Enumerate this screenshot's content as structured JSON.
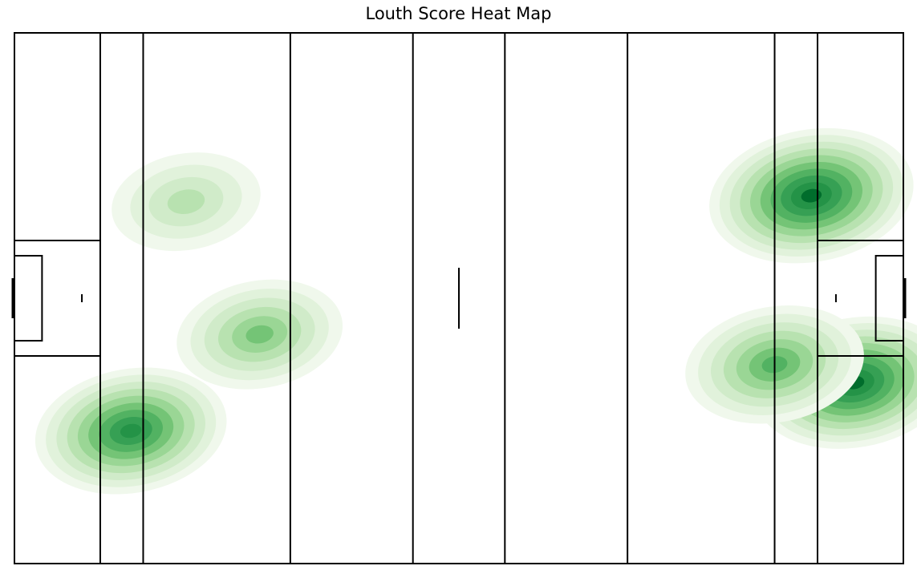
{
  "chart_data": {
    "type": "heatmap",
    "title": "Louth Score Heat Map",
    "xlabel": "",
    "ylabel": "",
    "xlim": [
      0,
      145
    ],
    "ylim": [
      0,
      88
    ],
    "colormap": "Greens",
    "grid": false,
    "legend": "none",
    "density_levels": 10,
    "pitch_lines_x": [
      14,
      21,
      45,
      65,
      80,
      100,
      124,
      131
    ],
    "halfway_marker_x": 72.5,
    "hotspots": [
      {
        "x": 130,
        "y": 61,
        "weight": 1.0
      },
      {
        "x": 137,
        "y": 30,
        "weight": 0.95
      },
      {
        "x": 124,
        "y": 33,
        "weight": 0.7
      },
      {
        "x": 19,
        "y": 22,
        "weight": 0.85
      },
      {
        "x": 40,
        "y": 38,
        "weight": 0.55
      },
      {
        "x": 28,
        "y": 60,
        "weight": 0.35
      }
    ]
  },
  "colors": {
    "levels": [
      "#f0f8ec",
      "#e1f2db",
      "#d0ebc9",
      "#b8e2b0",
      "#9ad695",
      "#74c476",
      "#52b262",
      "#36a054",
      "#249347",
      "#006d2c"
    ],
    "line": "#000000"
  }
}
